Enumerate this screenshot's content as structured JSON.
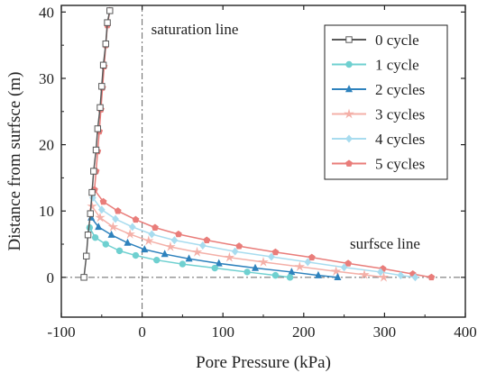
{
  "chart_data": {
    "type": "line",
    "title": "",
    "xlabel": "Pore Pressure (kPa)",
    "ylabel": "Distance from surfsce (m)",
    "xlim": [
      -100,
      400
    ],
    "ylim": [
      -6,
      41
    ],
    "xticks": [
      -100,
      0,
      100,
      200,
      300,
      400
    ],
    "yticks": [
      0,
      10,
      20,
      30,
      40
    ],
    "grid": false,
    "legend_position": "top-right",
    "annotations": {
      "saturation_line": "saturation line",
      "surface_line": "surfsce line"
    },
    "reference_lines": {
      "vertical_x": 0,
      "horizontal_y": 0
    },
    "series": [
      {
        "name": "0 cycle",
        "color": "#595959",
        "marker": "square",
        "points": [
          [
            -72,
            0
          ],
          [
            -69,
            3.2
          ],
          [
            -67,
            6.4
          ],
          [
            -64,
            9.6
          ],
          [
            -62,
            12.8
          ],
          [
            -60,
            16
          ],
          [
            -57,
            19.2
          ],
          [
            -55,
            22.4
          ],
          [
            -52,
            25.6
          ],
          [
            -50,
            28.8
          ],
          [
            -48,
            32
          ],
          [
            -45,
            35.2
          ],
          [
            -43,
            38.4
          ],
          [
            -40,
            40.2
          ]
        ]
      },
      {
        "name": "1 cycle",
        "color": "#6fd0d0",
        "marker": "circle",
        "points": [
          [
            -65,
            7.5
          ],
          [
            -58,
            6
          ],
          [
            -45,
            5
          ],
          [
            -28,
            4
          ],
          [
            -8,
            3.3
          ],
          [
            18,
            2.6
          ],
          [
            50,
            2
          ],
          [
            90,
            1.4
          ],
          [
            130,
            0.8
          ],
          [
            165,
            0.3
          ],
          [
            183,
            0
          ]
        ]
      },
      {
        "name": "2 cycles",
        "color": "#2e82bd",
        "marker": "triangle",
        "points": [
          [
            -63,
            9
          ],
          [
            -54,
            7.6
          ],
          [
            -38,
            6.4
          ],
          [
            -18,
            5.2
          ],
          [
            3,
            4.2
          ],
          [
            28,
            3.5
          ],
          [
            58,
            2.8
          ],
          [
            95,
            2.1
          ],
          [
            140,
            1.4
          ],
          [
            185,
            0.8
          ],
          [
            218,
            0.3
          ],
          [
            242,
            0
          ]
        ]
      },
      {
        "name": "3 cycles",
        "color": "#f4b0a8",
        "marker": "star",
        "points": [
          [
            -62,
            10.7
          ],
          [
            -52,
            9
          ],
          [
            -36,
            7.6
          ],
          [
            -15,
            6.5
          ],
          [
            8,
            5.5
          ],
          [
            35,
            4.6
          ],
          [
            68,
            3.8
          ],
          [
            108,
            3
          ],
          [
            150,
            2.3
          ],
          [
            195,
            1.6
          ],
          [
            240,
            0.9
          ],
          [
            275,
            0.4
          ],
          [
            299,
            0
          ]
        ]
      },
      {
        "name": "4 cycles",
        "color": "#a8dcef",
        "marker": "diamond",
        "points": [
          [
            -61,
            12
          ],
          [
            -50,
            10.2
          ],
          [
            -33,
            8.8
          ],
          [
            -12,
            7.6
          ],
          [
            12,
            6.5
          ],
          [
            40,
            5.6
          ],
          [
            75,
            4.8
          ],
          [
            115,
            3.9
          ],
          [
            160,
            3.1
          ],
          [
            205,
            2.3
          ],
          [
            250,
            1.5
          ],
          [
            295,
            0.8
          ],
          [
            320,
            0.3
          ],
          [
            338,
            0
          ]
        ]
      },
      {
        "name": "5 cycles",
        "color": "#e97d7a",
        "marker": "pentagon",
        "points": [
          [
            -59,
            13.2
          ],
          [
            -48,
            11.4
          ],
          [
            -30,
            10
          ],
          [
            -8,
            8.7
          ],
          [
            16,
            7.5
          ],
          [
            45,
            6.5
          ],
          [
            80,
            5.6
          ],
          [
            120,
            4.7
          ],
          [
            165,
            3.8
          ],
          [
            210,
            3
          ],
          [
            255,
            2.1
          ],
          [
            298,
            1.3
          ],
          [
            335,
            0.5
          ],
          [
            358,
            0
          ]
        ],
        "upper_points": [
          [
            -59,
            13.2
          ],
          [
            -57,
            16
          ],
          [
            -55,
            19
          ],
          [
            -53,
            22
          ],
          [
            -51,
            25.3
          ],
          [
            -49,
            28.6
          ],
          [
            -47,
            31.8
          ],
          [
            -45,
            35
          ],
          [
            -43,
            38
          ],
          [
            -40,
            40.2
          ]
        ]
      }
    ]
  }
}
